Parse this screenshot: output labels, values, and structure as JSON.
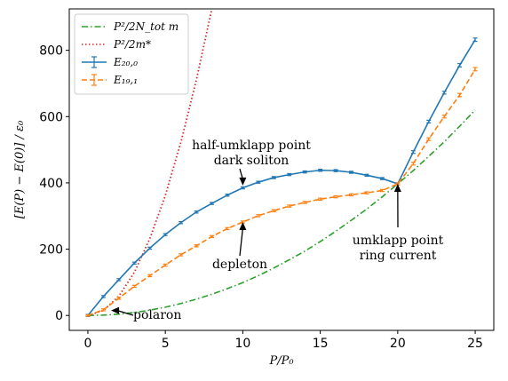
{
  "chart_data": {
    "type": "line",
    "xlabel": "P/P₀",
    "ylabel": "[E(P) − E(0)] / ε₀",
    "xlim": [
      -1.2,
      26.2
    ],
    "ylim": [
      -45,
      925
    ],
    "xticks": [
      0,
      5,
      10,
      15,
      20,
      25
    ],
    "yticks": [
      0,
      200,
      400,
      600,
      800
    ],
    "grid": false,
    "legend_placement": "top-left",
    "legend": [
      {
        "label": "P²/2N_tot m",
        "style": "dashdot",
        "color": "#2ca02c"
      },
      {
        "label": "P²/2m*",
        "style": "dotted",
        "color": "#d62728"
      },
      {
        "label": "E₂₀,₀",
        "style": "solid-errorbar",
        "color": "#1f77b4"
      },
      {
        "label": "E₁₉,₁",
        "style": "dashed-errorbar",
        "color": "#ff7f0e"
      }
    ],
    "series": [
      {
        "name": "P²/2N_tot m",
        "color": "#2ca02c",
        "x": [
          0,
          1,
          2,
          3,
          4,
          5,
          6,
          7,
          8,
          9,
          10,
          11,
          12,
          13,
          14,
          15,
          16,
          17,
          18,
          19,
          20,
          21,
          22,
          23,
          24,
          25
        ],
        "y": [
          0,
          1,
          4,
          9,
          16,
          25,
          36,
          49,
          64,
          81,
          99,
          120,
          143,
          168,
          194,
          223,
          254,
          287,
          321,
          358,
          397,
          437,
          480,
          524,
          571,
          620
        ]
      },
      {
        "name": "P²/2m*",
        "color": "#d62728",
        "x": [
          0,
          1,
          2,
          3,
          4,
          5,
          6,
          7,
          8
        ],
        "y": [
          0,
          15,
          58,
          130,
          232,
          362,
          522,
          710,
          925
        ]
      },
      {
        "name": "E₂₀,₀",
        "color": "#1f77b4",
        "x": [
          0,
          1,
          2,
          3,
          4,
          5,
          6,
          7,
          8,
          9,
          10,
          11,
          12,
          13,
          14,
          15,
          16,
          17,
          18,
          19,
          20,
          21,
          22,
          23,
          24,
          25
        ],
        "y": [
          0,
          57,
          108,
          158,
          203,
          244,
          280,
          312,
          338,
          363,
          385,
          402,
          416,
          425,
          433,
          438,
          437,
          432,
          423,
          413,
          397,
          493,
          585,
          672,
          755,
          832
        ],
        "err": [
          3,
          3,
          3,
          3,
          3,
          3,
          3,
          3,
          3,
          3,
          3,
          3,
          3,
          3,
          3,
          3,
          3,
          3,
          3,
          3,
          3,
          4,
          4,
          4,
          5,
          5
        ]
      },
      {
        "name": "E₁₉,₁",
        "color": "#ff7f0e",
        "x": [
          0,
          1,
          2,
          3,
          4,
          5,
          6,
          7,
          8,
          9,
          10,
          11,
          12,
          13,
          14,
          15,
          16,
          17,
          18,
          19,
          20,
          21,
          22,
          23,
          24,
          25
        ],
        "y": [
          0,
          17,
          52,
          88,
          120,
          152,
          183,
          210,
          238,
          262,
          282,
          301,
          316,
          330,
          341,
          351,
          358,
          364,
          370,
          377,
          397,
          458,
          532,
          600,
          665,
          743
        ],
        "err": [
          2,
          3,
          3,
          3,
          3,
          3,
          3,
          3,
          3,
          3,
          3,
          3,
          3,
          3,
          3,
          3,
          3,
          3,
          3,
          3,
          3,
          4,
          4,
          4,
          5,
          5
        ]
      }
    ],
    "annotations": [
      {
        "id": "polaron",
        "lines": [
          "polaron"
        ],
        "target": [
          1.5,
          15
        ]
      },
      {
        "id": "depleton",
        "lines": [
          "depleton"
        ],
        "target": [
          10.0,
          282
        ]
      },
      {
        "id": "half-umklapp",
        "lines": [
          "half-umklapp point",
          "dark soliton"
        ],
        "target": [
          10.0,
          392
        ]
      },
      {
        "id": "umklapp",
        "lines": [
          "umklapp point",
          "ring current"
        ],
        "target": [
          20.0,
          397
        ]
      }
    ]
  }
}
